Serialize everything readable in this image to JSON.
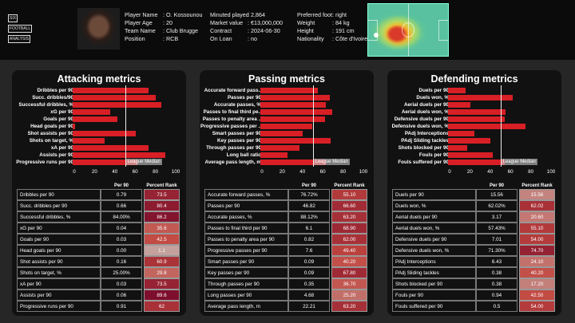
{
  "header": {
    "logo_text": [
      "SIX",
      "FOOTBALL",
      "ANALYSIS"
    ],
    "col1": [
      [
        "Player Name",
        ": O. Kossounou"
      ],
      [
        "Player Age",
        ": 20"
      ],
      [
        "Team Name",
        ": Club Brugge"
      ],
      [
        "Position",
        ": RCB"
      ]
    ],
    "col2": [
      [
        "Minuted played",
        ": 2,864"
      ],
      [
        "Market value",
        ": €13,000,000"
      ],
      [
        "Contract",
        ": 2024-06-30"
      ],
      [
        "On Loan",
        ": no"
      ]
    ],
    "col3": [
      [
        "Preferred foot",
        ": right"
      ],
      [
        "Weight",
        ": 84 kg"
      ],
      [
        "Height",
        ": 191 cm"
      ],
      [
        "Nationality",
        ": Côte d'Ivoire"
      ]
    ]
  },
  "colors": {
    "bar": "#d81f26",
    "median": "#eeeeee",
    "rank_low": "#c4a39f",
    "rank_mid": "#c2463f",
    "rank_high": "#7d0f2c"
  },
  "median_label": "League Median",
  "median_value": 50,
  "table_headers": [
    "Per 90",
    "Percent Rank"
  ],
  "panels": [
    {
      "title": "Attacking metrics",
      "chart_labels": [
        "Dribbles per 90",
        "Succ. dribbles/90",
        "Successful dribbles, %",
        "xG per 90",
        "Goals per 90",
        "Head goals per 90",
        "Shot assists per 90",
        "Shots on target, %",
        "xA per 90",
        "Assists per 90",
        "Progressive runs per 90"
      ],
      "values": [
        73.5,
        80.4,
        86.2,
        35.6,
        42.5,
        1.1,
        60.9,
        29.8,
        73.5,
        89.6,
        62
      ],
      "rows": [
        [
          "Dribbles per 90",
          "0.79",
          "73.5"
        ],
        [
          "Succ. dribbles per 90",
          "0.66",
          "80.4"
        ],
        [
          "Successful dribbles, %",
          "84.00%",
          "86.2"
        ],
        [
          "xG per 90",
          "0.04",
          "35.6"
        ],
        [
          "Goals per 90",
          "0.03",
          "42.5"
        ],
        [
          "Head goals per 90",
          "0.00",
          "1.1"
        ],
        [
          "Shot assists per 90",
          "0.16",
          "60.9"
        ],
        [
          "Shots on target, %",
          "25.00%",
          "29.8"
        ],
        [
          "xA per 90",
          "0.03",
          "73.5"
        ],
        [
          "Assists per 90",
          "0.06",
          "89.6"
        ],
        [
          "Progressive runs per 90",
          "0.91",
          "62"
        ]
      ]
    },
    {
      "title": "Passing metrics",
      "chart_labels": [
        "Accurate forward pass..",
        "Passes per 90",
        "Accurate passes, %",
        "Passes to final third pe..",
        "Passes to penalty area ..",
        "Progressive passes per ..",
        "Smart passes per 90",
        "Key passes per 90",
        "Through passes per 90",
        "Long ball ratio",
        "Average pass length, m"
      ],
      "values": [
        55.1,
        66.6,
        63.2,
        68.9,
        62,
        49.4,
        40.2,
        67.8,
        36.7,
        25.2,
        63.2
      ],
      "rows": [
        [
          "Accurate forward passes, %",
          "76.72%",
          "55.10"
        ],
        [
          "Passes per 90",
          "46.82",
          "66.60"
        ],
        [
          "Accurate passes, %",
          "88.12%",
          "63.20"
        ],
        [
          "Passes to final third per 90",
          "6.1",
          "68.90"
        ],
        [
          "Passes to penalty area per 90",
          "0.82",
          "62.00"
        ],
        [
          "Progressive passes per 90",
          "7.6",
          "49.40"
        ],
        [
          "Smart passes per 90",
          "0.09",
          "40.20"
        ],
        [
          "Key passes per 90",
          "0.09",
          "67.80"
        ],
        [
          "Through passes per 90",
          "0.35",
          "36.70"
        ],
        [
          "Long passes per 90",
          "4.68",
          "25.20"
        ],
        [
          "Average pass length, m",
          "22.21",
          "63.20"
        ]
      ]
    },
    {
      "title": "Defending metrics",
      "chart_labels": [
        "Duels per 90",
        "Duels won, %",
        "Aerial duels per 90",
        "Aerial duels won, %",
        "Defensive duels per 90",
        "Defensive duels won, %",
        "PAdj Interceptions",
        "PAdj Sliding tackles",
        "Shots blocked per 90",
        "Fouls per 90",
        "Fouls suffered per 90"
      ],
      "values": [
        15.56,
        62.02,
        20.6,
        55.1,
        54,
        74.7,
        24.1,
        40.2,
        17.2,
        42.5,
        54
      ],
      "rows": [
        [
          "Duels per 90",
          "15.56",
          "15.56"
        ],
        [
          "Duels won, %",
          "62.02%",
          "62.02"
        ],
        [
          "Aerial duels per 90",
          "3.17",
          "20.60"
        ],
        [
          "Aerial duels won, %",
          "57.43%",
          "55.10"
        ],
        [
          "Defensive duels per 90",
          "7.01",
          "54.00"
        ],
        [
          "Defensive duels won, %",
          "71.30%",
          "74.70"
        ],
        [
          "PAdj Interceptions",
          "6.43",
          "24.10"
        ],
        [
          "PAdj Sliding tackles",
          "0.38",
          "40.20"
        ],
        [
          "Shots blocked per 90",
          "0.38",
          "17.20"
        ],
        [
          "Fouls per 90",
          "0.94",
          "42.50"
        ],
        [
          "Fouls suffered per 90",
          "0.5",
          "54.00"
        ]
      ]
    }
  ],
  "chart_data": [
    {
      "type": "bar",
      "orientation": "horizontal",
      "title": "Attacking metrics",
      "xlim": [
        0,
        100
      ],
      "ticks": [
        0,
        20,
        40,
        60,
        80,
        100
      ],
      "reference_line": {
        "label": "League Median",
        "value": 50
      },
      "categories": [
        "Dribbles per 90",
        "Succ. dribbles/90",
        "Successful dribbles, %",
        "xG per 90",
        "Goals per 90",
        "Head goals per 90",
        "Shot assists per 90",
        "Shots on target, %",
        "xA per 90",
        "Assists per 90",
        "Progressive runs per 90"
      ],
      "values": [
        73.5,
        80.4,
        86.2,
        35.6,
        42.5,
        1.1,
        60.9,
        29.8,
        73.5,
        89.6,
        62
      ]
    },
    {
      "type": "bar",
      "orientation": "horizontal",
      "title": "Passing metrics",
      "xlim": [
        0,
        100
      ],
      "ticks": [
        0,
        20,
        40,
        60,
        80,
        100
      ],
      "reference_line": {
        "label": "League Median",
        "value": 50
      },
      "categories": [
        "Accurate forward pass..",
        "Passes per 90",
        "Accurate passes, %",
        "Passes to final third pe..",
        "Passes to penalty area ..",
        "Progressive passes per ..",
        "Smart passes per 90",
        "Key passes per 90",
        "Through passes per 90",
        "Long ball ratio",
        "Average pass length, m"
      ],
      "values": [
        55.1,
        66.6,
        63.2,
        68.9,
        62,
        49.4,
        40.2,
        67.8,
        36.7,
        25.2,
        63.2
      ]
    },
    {
      "type": "bar",
      "orientation": "horizontal",
      "title": "Defending metrics",
      "xlim": [
        0,
        100
      ],
      "ticks": [
        0,
        20,
        40,
        60,
        80,
        100
      ],
      "reference_line": {
        "label": "League Median",
        "value": 50
      },
      "categories": [
        "Duels per 90",
        "Duels won, %",
        "Aerial duels per 90",
        "Aerial duels won, %",
        "Defensive duels per 90",
        "Defensive duels won, %",
        "PAdj Interceptions",
        "PAdj Sliding tackles",
        "Shots blocked per 90",
        "Fouls per 90",
        "Fouls suffered per 90"
      ],
      "values": [
        15.56,
        62.02,
        20.6,
        55.1,
        54,
        74.7,
        24.1,
        40.2,
        17.2,
        42.5,
        54
      ]
    }
  ]
}
